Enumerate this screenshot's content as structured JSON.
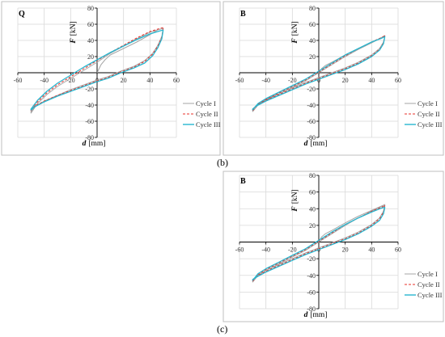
{
  "captions": {
    "b": "(b)",
    "c": "(c)"
  },
  "legend_labels": [
    "Cycle I",
    "Cycle II",
    "Cycle III"
  ],
  "colors": {
    "cycle_1": "#a6a6a6",
    "cycle_2": "#e8312a",
    "cycle_3": "#27b6cf",
    "grid": "#d9d9d9",
    "axis": "#000000",
    "frame": "#bfbfbf"
  },
  "chart_data": [
    {
      "type": "line",
      "panel_label": "Q",
      "xlabel_symbol": "d",
      "xlabel_unit": "[mm]",
      "ylabel_symbol": "F",
      "ylabel_unit": "[kN]",
      "xlim": [
        -60,
        60
      ],
      "ylim": [
        -80,
        80
      ],
      "xticks": [
        -60,
        -40,
        -20,
        0,
        20,
        40,
        60
      ],
      "yticks": [
        -80,
        -60,
        -40,
        -20,
        0,
        20,
        40,
        60,
        80
      ],
      "grid": true,
      "legend": "right",
      "series": [
        {
          "name": "Cycle I",
          "style": "solid",
          "color": "#a6a6a6",
          "x": [
            0,
            3,
            6,
            10,
            20,
            30,
            40,
            46,
            50,
            49,
            46,
            42,
            36,
            28,
            18,
            8,
            0,
            -10,
            -20,
            -30,
            -40,
            -47,
            -50,
            -50,
            -45,
            -38,
            -30,
            -20,
            -10,
            0,
            10,
            20,
            30,
            40,
            48,
            50
          ],
          "y": [
            0,
            10,
            16,
            22,
            30,
            38,
            47,
            53,
            55,
            45,
            34,
            24,
            15,
            8,
            2,
            -5,
            -9,
            -15,
            -21,
            -28,
            -35,
            -42,
            -48,
            -50,
            -38,
            -27,
            -17,
            -7,
            3,
            13,
            24,
            33,
            42,
            50,
            54,
            55
          ]
        },
        {
          "name": "Cycle II",
          "style": "dashed",
          "color": "#e8312a",
          "x": [
            50,
            49,
            46,
            42,
            36,
            28,
            18,
            8,
            0,
            -10,
            -20,
            -30,
            -40,
            -47,
            -50,
            -50,
            -45,
            -38,
            -30,
            -20,
            -10,
            0,
            10,
            20,
            30,
            40,
            48,
            50
          ],
          "y": [
            55,
            44,
            33,
            23,
            14,
            7,
            1,
            -6,
            -10,
            -16,
            -22,
            -28,
            -35,
            -41,
            -46,
            -47,
            -36,
            -25,
            -15,
            -5,
            5,
            15,
            25,
            34,
            43,
            51,
            55,
            56
          ]
        },
        {
          "name": "Cycle III",
          "style": "solid",
          "color": "#27b6cf",
          "x": [
            50,
            49,
            46,
            42,
            36,
            28,
            18,
            8,
            0,
            -10,
            -20,
            -30,
            -40,
            -47,
            -50,
            -50,
            -45,
            -38,
            -30,
            -20,
            -10,
            0,
            10,
            20,
            30,
            40,
            48,
            50
          ],
          "y": [
            53,
            42,
            31,
            21,
            12,
            6,
            0,
            -7,
            -11,
            -17,
            -23,
            -29,
            -36,
            -42,
            -46,
            -45,
            -34,
            -23,
            -13,
            -3,
            7,
            16,
            25,
            33,
            41,
            48,
            52,
            53
          ]
        }
      ]
    },
    {
      "type": "line",
      "panel_label": "B",
      "xlabel_symbol": "d",
      "xlabel_unit": "[mm]",
      "ylabel_symbol": "F",
      "ylabel_unit": "[kN]",
      "xlim": [
        -60,
        60
      ],
      "ylim": [
        -80,
        80
      ],
      "xticks": [
        -60,
        -40,
        -20,
        0,
        20,
        40,
        60
      ],
      "yticks": [
        -80,
        -60,
        -40,
        -20,
        0,
        20,
        40,
        60,
        80
      ],
      "grid": true,
      "legend": "right",
      "series": [
        {
          "name": "Cycle I",
          "style": "solid",
          "color": "#a6a6a6",
          "x": [
            0,
            2,
            5,
            10,
            20,
            30,
            40,
            47,
            50,
            49,
            46,
            40,
            30,
            20,
            10,
            0,
            -10,
            -20,
            -30,
            -40,
            -47,
            -50,
            -50,
            -46,
            -40,
            -30,
            -20,
            -10,
            0,
            10,
            20,
            30,
            40,
            48,
            50
          ],
          "y": [
            0,
            5,
            9,
            13,
            22,
            30,
            37,
            43,
            46,
            38,
            30,
            22,
            13,
            6,
            0,
            -6,
            -12,
            -19,
            -26,
            -33,
            -40,
            -45,
            -48,
            -40,
            -34,
            -26,
            -18,
            -10,
            0,
            10,
            20,
            29,
            37,
            44,
            46
          ]
        },
        {
          "name": "Cycle II",
          "style": "dashed",
          "color": "#e8312a",
          "x": [
            50,
            49,
            46,
            40,
            30,
            20,
            10,
            0,
            -10,
            -20,
            -30,
            -40,
            -47,
            -50,
            -50,
            -46,
            -40,
            -30,
            -20,
            -10,
            0,
            10,
            20,
            30,
            40,
            48,
            50
          ],
          "y": [
            46,
            37,
            29,
            21,
            12,
            5,
            -1,
            -7,
            -13,
            -20,
            -27,
            -34,
            -41,
            -45,
            -47,
            -39,
            -33,
            -25,
            -17,
            -9,
            1,
            11,
            21,
            30,
            38,
            44,
            46
          ]
        },
        {
          "name": "Cycle III",
          "style": "solid",
          "color": "#27b6cf",
          "x": [
            50,
            49,
            46,
            40,
            30,
            20,
            10,
            0,
            -10,
            -20,
            -30,
            -40,
            -47,
            -50,
            -50,
            -46,
            -40,
            -30,
            -20,
            -10,
            0,
            10,
            20,
            30,
            40,
            48,
            50
          ],
          "y": [
            45,
            36,
            28,
            20,
            11,
            4,
            -2,
            -8,
            -14,
            -21,
            -28,
            -35,
            -41,
            -45,
            -46,
            -38,
            -32,
            -24,
            -16,
            -8,
            2,
            12,
            22,
            30,
            38,
            43,
            45
          ]
        }
      ]
    },
    {
      "type": "line",
      "panel_label": "B",
      "xlabel_symbol": "d",
      "xlabel_unit": "[mm]",
      "ylabel_symbol": "F",
      "ylabel_unit": "[kN]",
      "xlim": [
        -60,
        60
      ],
      "ylim": [
        -80,
        80
      ],
      "xticks": [
        -60,
        -40,
        -20,
        0,
        20,
        40,
        60
      ],
      "yticks": [
        -80,
        -60,
        -40,
        -20,
        0,
        20,
        40,
        60,
        80
      ],
      "grid": true,
      "legend": "right",
      "series": [
        {
          "name": "Cycle I",
          "style": "solid",
          "color": "#a6a6a6",
          "x": [
            0,
            2,
            5,
            10,
            20,
            30,
            40,
            47,
            50,
            49,
            46,
            40,
            30,
            20,
            10,
            0,
            -10,
            -20,
            -30,
            -40,
            -47,
            -50,
            -50,
            -46,
            -40,
            -30,
            -20,
            -10,
            0,
            10,
            20,
            30,
            40,
            48,
            50
          ],
          "y": [
            0,
            6,
            10,
            14,
            23,
            31,
            38,
            43,
            45,
            37,
            29,
            21,
            12,
            5,
            -1,
            -7,
            -13,
            -20,
            -27,
            -34,
            -41,
            -46,
            -48,
            -40,
            -34,
            -26,
            -18,
            -10,
            0,
            10,
            20,
            29,
            37,
            43,
            45
          ]
        },
        {
          "name": "Cycle II",
          "style": "dashed",
          "color": "#e8312a",
          "x": [
            50,
            49,
            46,
            40,
            30,
            20,
            10,
            0,
            -10,
            -20,
            -30,
            -40,
            -47,
            -50,
            -50,
            -46,
            -40,
            -30,
            -20,
            -10,
            0,
            10,
            20,
            30,
            40,
            48,
            50
          ],
          "y": [
            44,
            36,
            28,
            20,
            11,
            4,
            -2,
            -8,
            -14,
            -21,
            -28,
            -35,
            -41,
            -45,
            -47,
            -39,
            -33,
            -25,
            -17,
            -9,
            1,
            11,
            21,
            29,
            37,
            42,
            44
          ]
        },
        {
          "name": "Cycle III",
          "style": "solid",
          "color": "#27b6cf",
          "x": [
            50,
            49,
            46,
            40,
            30,
            20,
            10,
            0,
            -10,
            -20,
            -30,
            -40,
            -47,
            -50,
            -50,
            -46,
            -40,
            -30,
            -20,
            -10,
            0,
            10,
            20,
            30,
            40,
            48,
            50
          ],
          "y": [
            42,
            34,
            26,
            19,
            10,
            3,
            -3,
            -9,
            -15,
            -22,
            -29,
            -36,
            -42,
            -45,
            -46,
            -38,
            -32,
            -24,
            -16,
            -8,
            2,
            12,
            21,
            29,
            36,
            41,
            42
          ]
        }
      ]
    }
  ]
}
